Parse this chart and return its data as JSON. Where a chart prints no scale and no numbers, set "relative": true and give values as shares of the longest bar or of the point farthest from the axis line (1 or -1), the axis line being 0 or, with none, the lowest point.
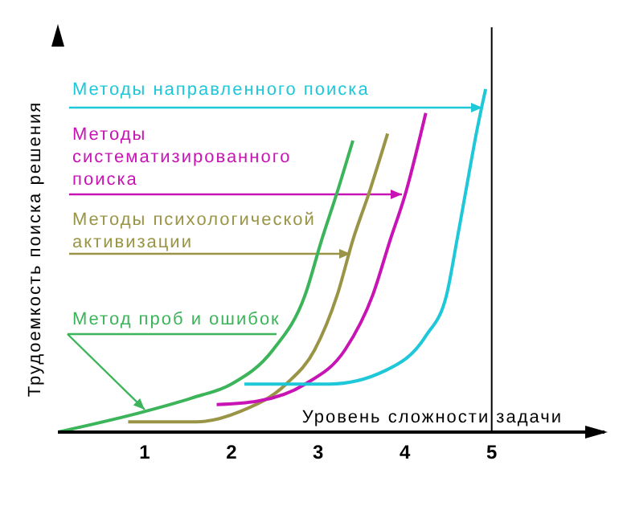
{
  "chart_data": {
    "type": "line",
    "relative": true,
    "xlabel": "Уровень сложности задачи",
    "ylabel": "Трудоемкость поиска решения",
    "xlim": [
      0,
      6.3
    ],
    "xticks": [
      1,
      2,
      3,
      4,
      5
    ],
    "grid": false,
    "legend": false,
    "marker": "none",
    "line_style": "solid",
    "ref_lines": [
      {
        "axis": "x",
        "value": 5,
        "color": "#000000"
      }
    ],
    "series": [
      {
        "name": "Метод проб и ошибок",
        "color": "#3cb45a",
        "x": [
          0,
          1,
          1.55,
          2,
          2.48,
          2.85,
          3.04,
          3.22,
          3.4
        ],
        "values": [
          0,
          0.06,
          0.1,
          0.14,
          0.24,
          0.4,
          0.56,
          0.7,
          0.85
        ]
      },
      {
        "name": "Методы психологической активизации",
        "color": "#9a9446",
        "x": [
          0.81,
          1.6,
          2.1,
          2.63,
          2.96,
          3.22,
          3.4,
          3.59,
          3.8
        ],
        "values": [
          0.03,
          0.03,
          0.06,
          0.14,
          0.24,
          0.4,
          0.56,
          0.7,
          0.87
        ]
      },
      {
        "name": "Методы систематизированного поиска",
        "color": "#c814b4",
        "x": [
          1.83,
          2.3,
          2.85,
          3.31,
          3.63,
          3.83,
          4,
          4.24
        ],
        "values": [
          0.08,
          0.09,
          0.14,
          0.24,
          0.4,
          0.56,
          0.69,
          0.93
        ]
      },
      {
        "name": "Методы направленного поиска",
        "color": "#1ec8d8",
        "x": [
          2.15,
          3.13,
          3.78,
          4.24,
          4.48,
          4.6,
          4.7,
          4.83,
          4.93
        ],
        "values": [
          0.14,
          0.14,
          0.18,
          0.28,
          0.4,
          0.56,
          0.7,
          0.88,
          1
        ]
      }
    ]
  }
}
